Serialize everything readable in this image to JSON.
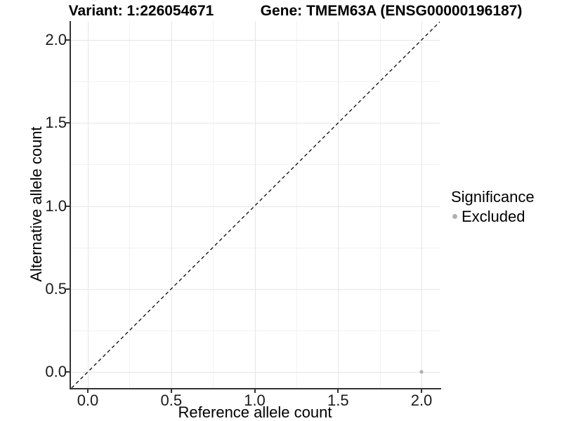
{
  "chart_data": {
    "type": "scatter",
    "title_left": "Variant: 1:226054671",
    "title_right": "Gene: TMEM63A (ENSG00000196187)",
    "xlabel": "Reference allele count",
    "ylabel": "Alternative allele count",
    "x_ticks": [
      0.0,
      0.5,
      1.0,
      1.5,
      2.0
    ],
    "y_ticks": [
      0.0,
      0.5,
      1.0,
      1.5,
      2.0
    ],
    "x_minor_ticks": [
      0.25,
      0.75,
      1.25,
      1.75
    ],
    "y_minor_ticks": [
      0.25,
      0.75,
      1.25,
      1.75
    ],
    "xlim": [
      -0.105,
      2.11
    ],
    "ylim": [
      -0.097,
      2.114
    ],
    "grid": "major+minor",
    "points": [
      {
        "x": 2.0,
        "y": 0.0,
        "series": "Excluded"
      }
    ],
    "reference_line": {
      "slope": 1,
      "intercept": 0,
      "style": "dashed"
    },
    "legend": {
      "position": "right",
      "title": "Significance",
      "items": [
        {
          "label": "Excluded",
          "color": "#b0b0b0"
        }
      ]
    },
    "colors": {
      "point_excluded": "#b0b0b0",
      "grid_major": "#e6e6e6",
      "grid_minor": "#f2f2f2",
      "axis_line": "#333333",
      "dashed_line": "#1a1a1a",
      "background": "#ffffff"
    }
  }
}
